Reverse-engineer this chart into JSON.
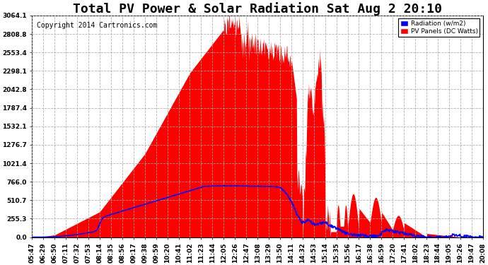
{
  "title": "Total PV Power & Solar Radiation Sat Aug 2 20:10",
  "copyright": "Copyright 2014 Cartronics.com",
  "legend_labels": [
    "Radiation (w/m2)",
    "PV Panels (DC Watts)"
  ],
  "ymin": 0.0,
  "ymax": 3064.1,
  "yticks": [
    0.0,
    255.3,
    510.7,
    766.0,
    1021.4,
    1276.7,
    1532.1,
    1787.4,
    2042.8,
    2298.1,
    2553.4,
    2808.8,
    3064.1
  ],
  "ytick_labels": [
    "0.0",
    "255.3",
    "510.7",
    "766.0",
    "1021.4",
    "1276.7",
    "1532.1",
    "1787.4",
    "2042.8",
    "2298.1",
    "2553.4",
    "2808.8",
    "3064.1"
  ],
  "xtick_labels": [
    "05:47",
    "06:29",
    "06:50",
    "07:11",
    "07:32",
    "07:53",
    "08:14",
    "08:35",
    "08:56",
    "09:17",
    "09:38",
    "09:59",
    "10:20",
    "10:41",
    "11:02",
    "11:23",
    "11:44",
    "12:05",
    "12:26",
    "12:47",
    "13:08",
    "13:29",
    "13:50",
    "14:11",
    "14:32",
    "14:53",
    "15:14",
    "15:35",
    "15:56",
    "16:17",
    "16:38",
    "16:59",
    "17:20",
    "17:41",
    "18:02",
    "18:23",
    "18:44",
    "19:05",
    "19:26",
    "19:47",
    "20:08"
  ],
  "background_color": "#ffffff",
  "plot_bg_color": "#ffffff",
  "grid_color": "#aaaaaa",
  "fill_color": "#ff0000",
  "line_color": "#0000ff",
  "title_fontsize": 13,
  "copyright_fontsize": 7,
  "tick_fontsize": 6.5
}
